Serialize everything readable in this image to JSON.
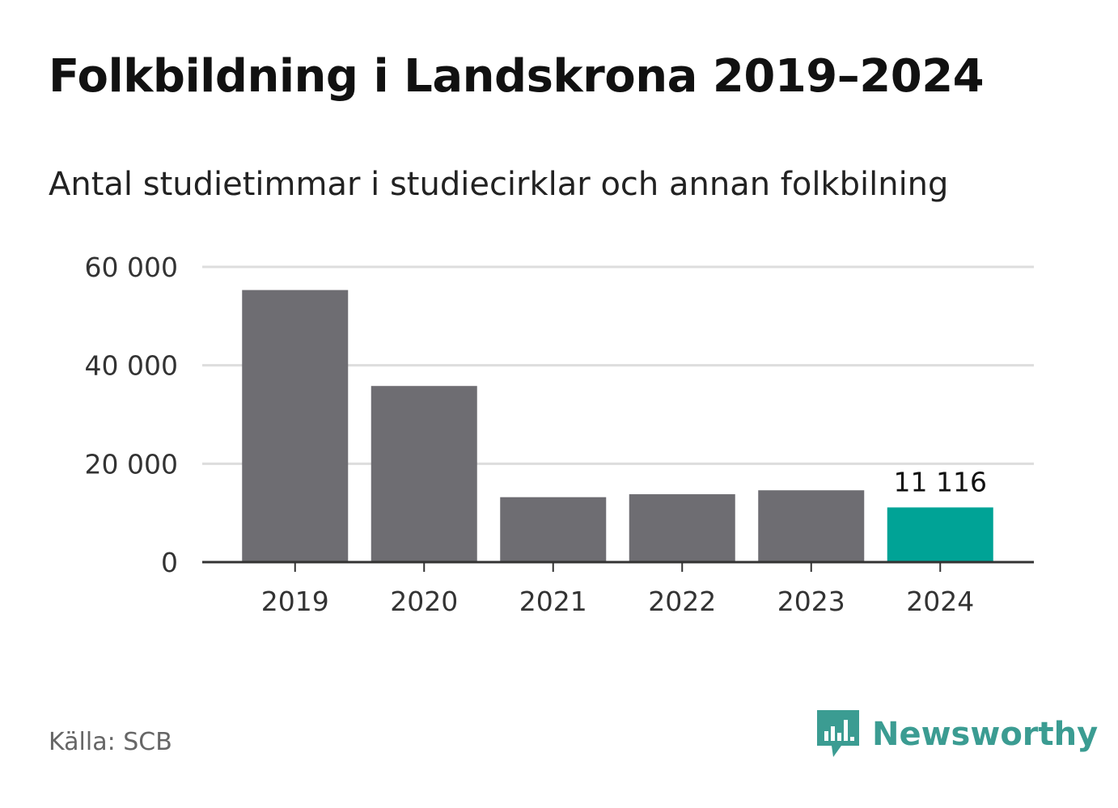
{
  "colors": {
    "bar": "#6e6d72",
    "highlight": "#00a396",
    "grid": "#dddddd",
    "axis": "#333333",
    "brand": "#3b9c92"
  },
  "header": {
    "title": "Folkbildning i Landskrona 2019–2024",
    "subtitle": "Antal studietimmar i studiecirklar och annan folkbilning"
  },
  "footer": {
    "source": "Källa: SCB",
    "brand_name": "Newsworthy",
    "brand_icon": "newsworthy-logo-icon"
  },
  "chart_data": {
    "type": "bar",
    "categories": [
      "2019",
      "2020",
      "2021",
      "2022",
      "2023",
      "2024"
    ],
    "values": [
      55300,
      35800,
      13200,
      13800,
      14600,
      11116
    ],
    "highlight_index": 5,
    "data_labels": [
      {
        "index": 5,
        "text": "11 116"
      }
    ],
    "ylim": [
      0,
      60000
    ],
    "yticks": [
      0,
      20000,
      40000,
      60000
    ],
    "ytick_labels": [
      "0",
      "20 000",
      "40 000",
      "60 000"
    ],
    "grid": true,
    "legend": "none"
  }
}
